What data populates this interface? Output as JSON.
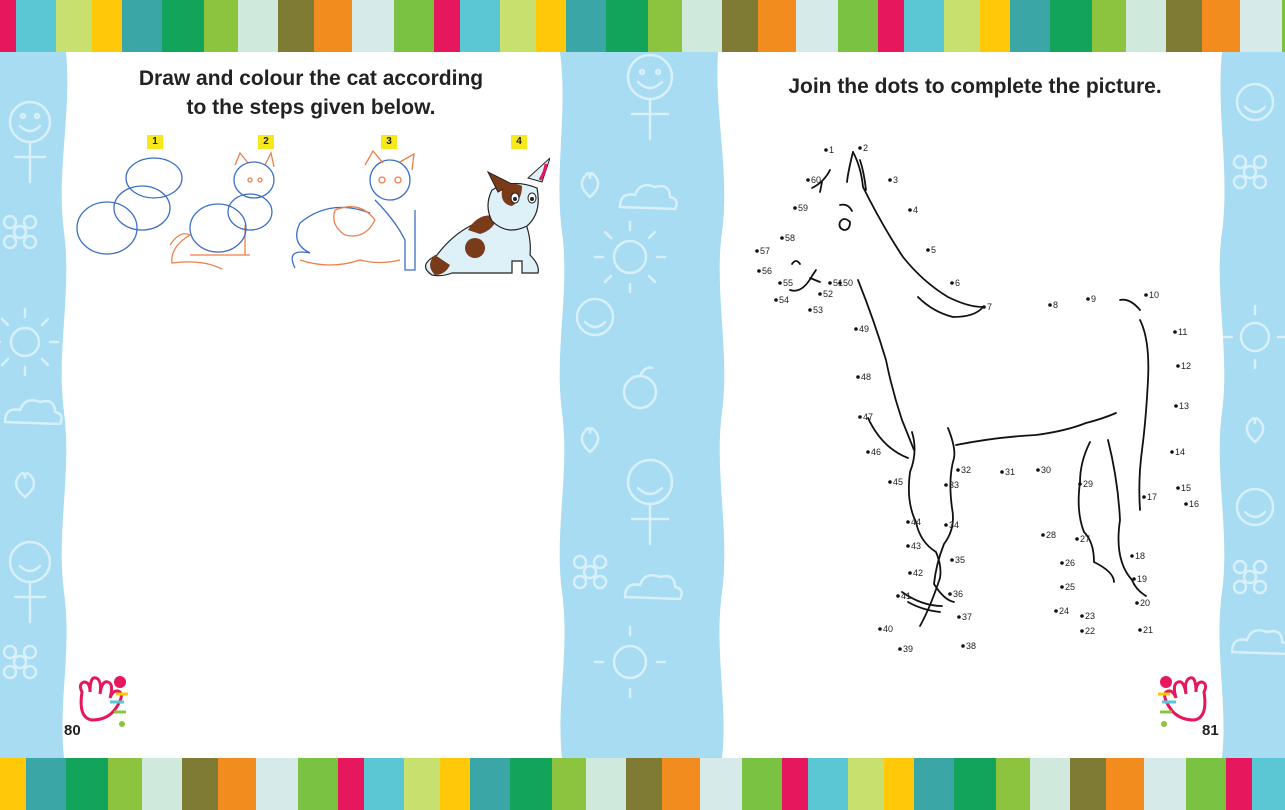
{
  "left_page": {
    "title_line1": "Draw and colour the cat according",
    "title_line2": "to the steps given below.",
    "steps": [
      "1",
      "2",
      "3",
      "4"
    ],
    "page_number": "80"
  },
  "right_page": {
    "title": "Join the dots to complete the picture.",
    "page_number": "81",
    "dot_labels": [
      "1",
      "2",
      "3",
      "4",
      "5",
      "6",
      "7",
      "8",
      "9",
      "10",
      "11",
      "12",
      "13",
      "14",
      "15",
      "16",
      "17",
      "18",
      "19",
      "20",
      "21",
      "22",
      "23",
      "24",
      "25",
      "26",
      "27",
      "28",
      "29",
      "30",
      "31",
      "32",
      "33",
      "34",
      "35",
      "36",
      "37",
      "38",
      "39",
      "40",
      "41",
      "42",
      "43",
      "44",
      "45",
      "46",
      "47",
      "48",
      "49",
      "50",
      "51",
      "52",
      "53",
      "54",
      "55",
      "56",
      "57",
      "58",
      "59",
      "60"
    ]
  },
  "colors": {
    "stripes": [
      "#e6175c",
      "#5bc6d4",
      "#c8e06d",
      "#ffc90a",
      "#3aa6a6",
      "#12a45a",
      "#8cc43f",
      "#cfe9dc",
      "#7f7b35",
      "#f28c1f",
      "#d6eaea",
      "#7ac242"
    ],
    "background_blue": "#a7dcf2",
    "badge_yellow": "#f6e81a"
  }
}
